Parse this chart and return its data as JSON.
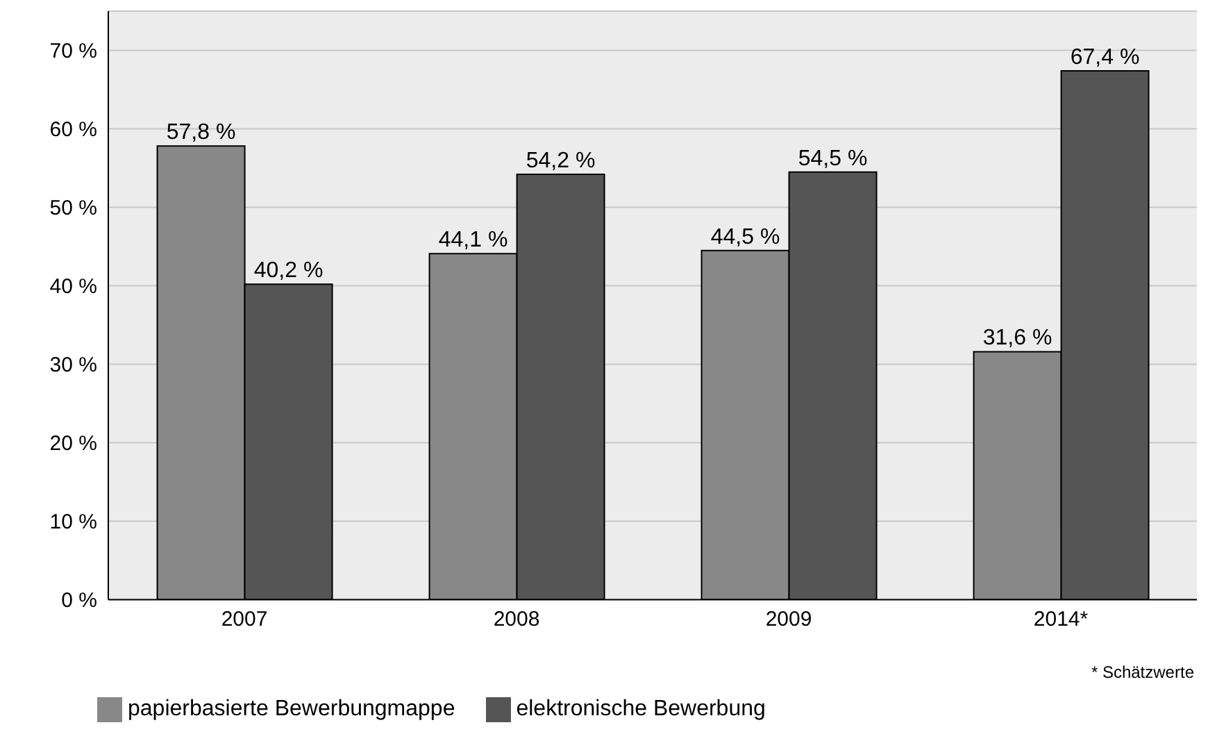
{
  "chart_data": {
    "type": "bar",
    "categories": [
      "2007",
      "2008",
      "2009",
      "2014*"
    ],
    "series": [
      {
        "name": "papierbasierte Bewerbungmappe",
        "color": "#888888",
        "values": [
          57.8,
          44.1,
          44.5,
          31.6
        ],
        "value_labels": [
          "57,8 %",
          "44,1 %",
          "44,5 %",
          "31,6 %"
        ]
      },
      {
        "name": "elektronische Bewerbung",
        "color": "#555555",
        "values": [
          40.2,
          54.2,
          54.5,
          67.4
        ],
        "value_labels": [
          "40,2 %",
          "54,2 %",
          "54,5 %",
          "67,4 %"
        ]
      }
    ],
    "ylim": [
      0,
      75
    ],
    "yticks": [
      {
        "value": 0,
        "label": "0 %"
      },
      {
        "value": 10,
        "label": "10 %"
      },
      {
        "value": 20,
        "label": "20 %"
      },
      {
        "value": 30,
        "label": "30 %"
      },
      {
        "value": 40,
        "label": "40 %"
      },
      {
        "value": 50,
        "label": "50 %"
      },
      {
        "value": 60,
        "label": "60 %"
      },
      {
        "value": 70,
        "label": "70 %"
      }
    ],
    "grid": "y",
    "legend": "bottom left",
    "annotations": [
      "* Schätzwerte"
    ]
  }
}
